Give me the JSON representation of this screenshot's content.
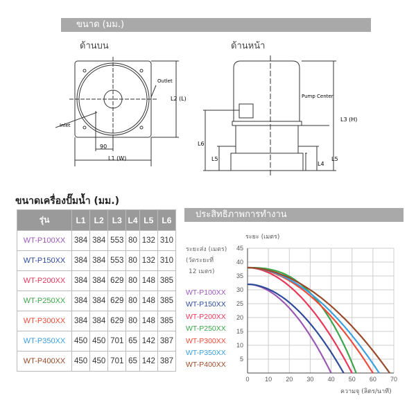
{
  "dimensions_header": "ขนาด (มม.)",
  "top_view": {
    "title": "ด้านบน",
    "outlet": "Outlet",
    "inlet": "Inlet",
    "dim_90": "90",
    "l1": "L1 (W)",
    "l2": "L2 (L)"
  },
  "front_view": {
    "title": "ด้านหน้า",
    "pump_center": "Pump Center",
    "l3": "L3 (H)",
    "l4": "L4",
    "l5": "L5",
    "l6": "L6"
  },
  "table": {
    "title": "ขนาดเครื่องปั๊มน้ำ (มม.)",
    "headers": [
      "รุ่น",
      "L1",
      "L2",
      "L3",
      "L4",
      "L5",
      "L6"
    ],
    "rows": [
      {
        "model": "WT-P100XX",
        "color": "#9b59b6",
        "values": [
          "384",
          "384",
          "553",
          "80",
          "132",
          "310"
        ]
      },
      {
        "model": "WT-P150XX",
        "color": "#2e4a9a",
        "values": [
          "384",
          "384",
          "553",
          "80",
          "132",
          "310"
        ]
      },
      {
        "model": "WT-P200XX",
        "color": "#e8385a",
        "values": [
          "384",
          "384",
          "629",
          "80",
          "148",
          "385"
        ]
      },
      {
        "model": "WT-P250XX",
        "color": "#3aa64a",
        "values": [
          "384",
          "384",
          "629",
          "80",
          "148",
          "385"
        ]
      },
      {
        "model": "WT-P300XX",
        "color": "#ef4b3a",
        "values": [
          "384",
          "384",
          "629",
          "80",
          "148",
          "385"
        ]
      },
      {
        "model": "WT-P350XX",
        "color": "#3aa0e0",
        "values": [
          "450",
          "450",
          "701",
          "65",
          "142",
          "387"
        ]
      },
      {
        "model": "WT-P400XX",
        "color": "#9a4a2a",
        "values": [
          "450",
          "450",
          "701",
          "65",
          "142",
          "387"
        ]
      }
    ]
  },
  "chart_data": {
    "type": "line",
    "title": "ประสิทธิภาพการทำงาน",
    "ylabel": "ระยะ (เมตร)",
    "side_label": [
      "ระยะส่ง (เมตร)",
      "(วัดระยะที่",
      "12 เมตร)"
    ],
    "xlabel": "ความจุ (ลิตร/นาที)",
    "xlim": [
      0,
      70
    ],
    "ylim": [
      0,
      45
    ],
    "xticks": [
      "0",
      "10",
      "20",
      "30",
      "40",
      "50",
      "60",
      "70"
    ],
    "yticks": [
      "5",
      "10",
      "15",
      "20",
      "25",
      "30",
      "35",
      "40",
      "45"
    ],
    "grid": true,
    "legend_position": "left",
    "series": [
      {
        "name": "WT-P100XX",
        "color": "#9b59b6",
        "shutoff_head": 32,
        "max_flow": 40
      },
      {
        "name": "WT-P150XX",
        "color": "#2e4a9a",
        "shutoff_head": 32,
        "max_flow": 46
      },
      {
        "name": "WT-P200XX",
        "color": "#e8385a",
        "shutoff_head": 38,
        "max_flow": 50
      },
      {
        "name": "WT-P250XX",
        "color": "#3aa64a",
        "shutoff_head": 38,
        "max_flow": 52
      },
      {
        "name": "WT-P300XX",
        "color": "#ef4b3a",
        "shutoff_head": 38,
        "max_flow": 60
      },
      {
        "name": "WT-P350XX",
        "color": "#3aa0e0",
        "shutoff_head": 38,
        "max_flow": 63
      },
      {
        "name": "WT-P400XX",
        "color": "#9a4a2a",
        "shutoff_head": 38,
        "max_flow": 68
      }
    ]
  }
}
